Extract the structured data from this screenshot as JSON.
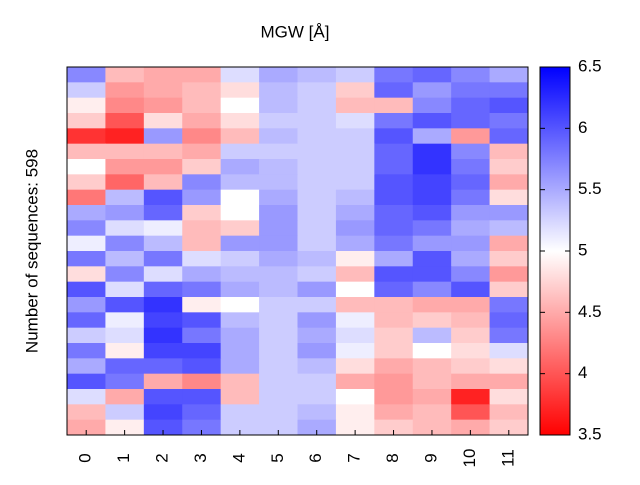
{
  "chart_data": {
    "type": "heatmap",
    "title": "MGW [Å]",
    "y_label": "Number of sequences: 598",
    "categories": [
      "0",
      "1",
      "2",
      "3",
      "4",
      "5",
      "6",
      "7",
      "8",
      "9",
      "10",
      "11"
    ],
    "z": [
      [
        5.7,
        4.6,
        4.5,
        4.5,
        5.2,
        5.5,
        5.4,
        5.3,
        5.8,
        5.9,
        5.7,
        5.5
      ],
      [
        5.3,
        4.4,
        4.5,
        4.6,
        4.8,
        5.4,
        5.3,
        4.7,
        5.9,
        5.6,
        5.8,
        5.8
      ],
      [
        4.9,
        4.3,
        4.4,
        4.6,
        5.0,
        5.4,
        5.3,
        4.6,
        4.6,
        5.7,
        5.9,
        6.0
      ],
      [
        4.7,
        4.0,
        4.8,
        4.5,
        4.8,
        5.3,
        5.3,
        5.2,
        5.8,
        6.0,
        5.9,
        5.8
      ],
      [
        3.8,
        3.7,
        5.6,
        4.3,
        4.6,
        5.4,
        5.3,
        5.3,
        6.0,
        5.5,
        4.4,
        5.9
      ],
      [
        4.6,
        4.6,
        4.6,
        4.5,
        5.3,
        5.3,
        5.3,
        5.3,
        5.9,
        6.2,
        5.7,
        4.6
      ],
      [
        5.0,
        4.4,
        4.4,
        4.7,
        5.5,
        5.4,
        5.3,
        5.3,
        5.9,
        6.2,
        5.8,
        4.7
      ],
      [
        4.7,
        4.1,
        4.6,
        5.7,
        5.4,
        5.4,
        5.3,
        5.3,
        6.0,
        6.1,
        5.9,
        4.5
      ],
      [
        4.2,
        5.4,
        6.0,
        5.6,
        5.0,
        5.5,
        5.3,
        5.4,
        6.0,
        6.1,
        5.8,
        4.8
      ],
      [
        5.5,
        5.6,
        5.9,
        4.7,
        5.0,
        5.6,
        5.3,
        5.5,
        5.9,
        6.0,
        5.6,
        5.6
      ],
      [
        5.7,
        5.2,
        5.1,
        4.6,
        4.7,
        5.6,
        5.3,
        5.6,
        5.9,
        5.8,
        5.5,
        5.4
      ],
      [
        5.1,
        5.7,
        5.4,
        4.6,
        5.6,
        5.6,
        5.3,
        5.5,
        5.8,
        5.6,
        5.6,
        4.5
      ],
      [
        5.8,
        5.4,
        5.8,
        5.2,
        5.3,
        5.5,
        5.4,
        4.9,
        5.5,
        6.0,
        5.5,
        4.7
      ],
      [
        4.8,
        5.7,
        5.2,
        5.5,
        5.4,
        5.4,
        5.3,
        4.6,
        6.0,
        6.0,
        5.7,
        4.4
      ],
      [
        6.0,
        5.2,
        5.9,
        5.8,
        5.5,
        5.4,
        5.6,
        5.0,
        5.9,
        5.7,
        6.0,
        4.7
      ],
      [
        5.6,
        6.0,
        6.2,
        4.9,
        5.0,
        5.3,
        5.3,
        4.6,
        4.6,
        4.5,
        4.5,
        5.8
      ],
      [
        5.9,
        5.1,
        6.1,
        6.0,
        5.4,
        5.3,
        5.6,
        5.1,
        4.6,
        4.7,
        4.6,
        5.9
      ],
      [
        5.3,
        5.2,
        6.2,
        5.8,
        5.5,
        5.3,
        5.5,
        5.2,
        4.7,
        5.4,
        4.7,
        5.8
      ],
      [
        5.8,
        4.9,
        6.1,
        6.1,
        5.5,
        5.3,
        5.6,
        5.1,
        4.7,
        5.0,
        4.8,
        5.2
      ],
      [
        5.5,
        5.9,
        5.9,
        6.0,
        5.5,
        5.3,
        5.4,
        4.8,
        4.5,
        4.6,
        4.7,
        4.8
      ],
      [
        6.0,
        5.8,
        4.5,
        4.3,
        4.6,
        5.3,
        5.3,
        4.5,
        4.4,
        4.6,
        4.5,
        4.5
      ],
      [
        5.2,
        4.5,
        6.0,
        6.0,
        4.6,
        5.3,
        5.3,
        5.0,
        4.4,
        4.5,
        3.7,
        4.8
      ],
      [
        4.6,
        5.3,
        6.1,
        5.9,
        5.3,
        5.3,
        5.4,
        4.9,
        4.5,
        4.6,
        4.0,
        4.6
      ],
      [
        4.5,
        4.9,
        6.0,
        5.8,
        5.3,
        5.3,
        5.5,
        4.9,
        4.7,
        4.6,
        4.5,
        4.7
      ]
    ],
    "zlim": [
      3.5,
      6.5
    ],
    "zticks": [
      3.5,
      4,
      4.5,
      5,
      5.5,
      6,
      6.5
    ],
    "colormap": [
      "#ff0000",
      "#ffffff",
      "#0000ff"
    ]
  }
}
